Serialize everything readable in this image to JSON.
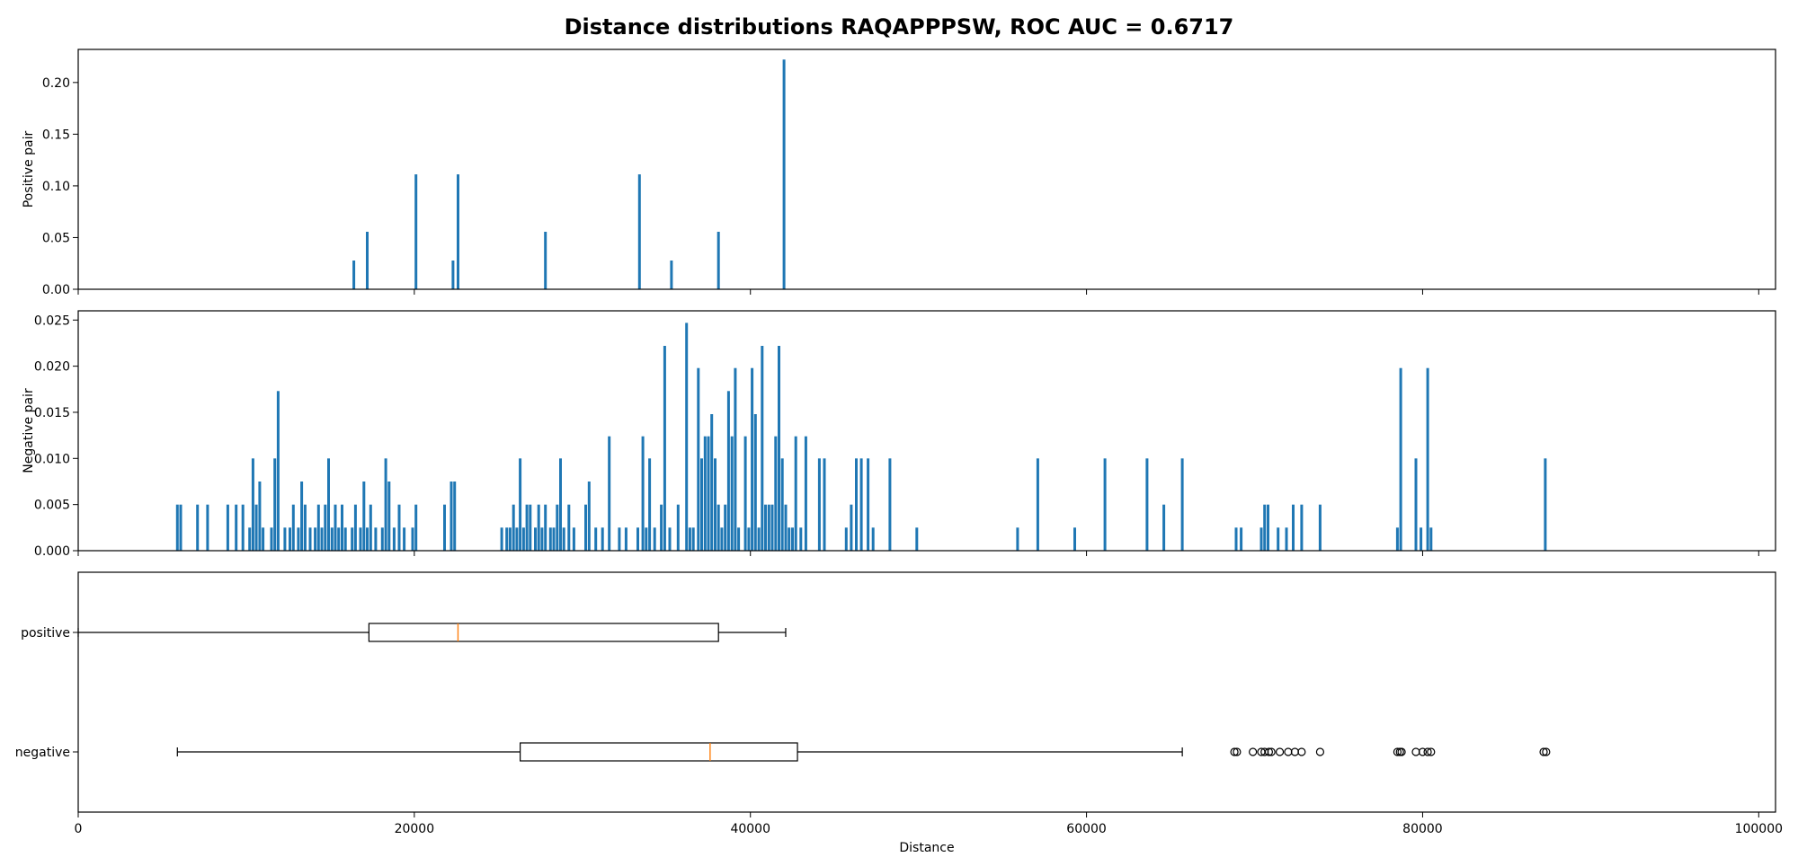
{
  "figure": {
    "title": "Distance distributions RAQAPPPSW, ROC AUC = 0.6717"
  },
  "colors": {
    "bars": "#1f77b4",
    "median": "#ff7f0e",
    "box": "#000000"
  },
  "chart_data": [
    {
      "type": "bar",
      "panel": "positive",
      "ylabel": "Positive pair",
      "xlim": [
        0,
        101000
      ],
      "ylim": [
        0,
        0.232
      ],
      "yticks": [
        0.0,
        0.05,
        0.1,
        0.15,
        0.2
      ],
      "ytick_labels": [
        "0.00",
        "0.05",
        "0.10",
        "0.15",
        "0.20"
      ],
      "x": [
        16400,
        17200,
        20100,
        22300,
        22600,
        27800,
        33400,
        35300,
        38100,
        42000
      ],
      "values": [
        0.0278,
        0.0556,
        0.1111,
        0.0278,
        0.1111,
        0.0556,
        0.1111,
        0.0278,
        0.0556,
        0.2222
      ]
    },
    {
      "type": "bar",
      "panel": "negative",
      "ylabel": "Negative pair",
      "xlim": [
        0,
        101000
      ],
      "ylim": [
        0,
        0.026
      ],
      "yticks": [
        0.0,
        0.005,
        0.01,
        0.015,
        0.02,
        0.025
      ],
      "ytick_labels": [
        "0.000",
        "0.005",
        "0.010",
        "0.015",
        "0.020",
        "0.025"
      ],
      "x": [
        5900,
        6100,
        7100,
        7700,
        8900,
        9400,
        9800,
        10200,
        10400,
        10600,
        10800,
        11000,
        11500,
        11700,
        11900,
        12300,
        12600,
        12800,
        13100,
        13300,
        13500,
        13800,
        14100,
        14300,
        14500,
        14700,
        14900,
        15100,
        15300,
        15500,
        15700,
        15900,
        16300,
        16500,
        16800,
        17000,
        17200,
        17400,
        17700,
        18100,
        18300,
        18500,
        18800,
        19100,
        19400,
        19900,
        20100,
        21800,
        22200,
        22400,
        25200,
        25500,
        25700,
        25900,
        26100,
        26300,
        26500,
        26700,
        26900,
        27200,
        27400,
        27600,
        27800,
        28100,
        28300,
        28500,
        28700,
        28900,
        29200,
        29500,
        30200,
        30400,
        30800,
        31200,
        31600,
        32200,
        32600,
        33300,
        33600,
        33800,
        34000,
        34300,
        34700,
        34900,
        35200,
        35700,
        36200,
        36400,
        36600,
        36900,
        37100,
        37300,
        37500,
        37700,
        37900,
        38100,
        38300,
        38500,
        38700,
        38900,
        39100,
        39300,
        39700,
        39900,
        40100,
        40300,
        40500,
        40700,
        40900,
        41100,
        41300,
        41500,
        41700,
        41900,
        42100,
        42300,
        42500,
        42700,
        43000,
        43300,
        44100,
        44400,
        45700,
        46000,
        46300,
        46600,
        47000,
        47300,
        48300,
        49900,
        55900,
        57100,
        59300,
        61100,
        63600,
        64600,
        65700,
        68900,
        69200,
        70400,
        70600,
        70800,
        71400,
        71900,
        72300,
        72800,
        73900,
        78500,
        78700,
        79600,
        79900,
        80300,
        80500,
        87300
      ],
      "values": [
        0.005,
        0.005,
        0.005,
        0.005,
        0.005,
        0.005,
        0.005,
        0.0025,
        0.01,
        0.005,
        0.0075,
        0.0025,
        0.0025,
        0.01,
        0.0173,
        0.0025,
        0.0025,
        0.005,
        0.0025,
        0.0075,
        0.005,
        0.0025,
        0.0025,
        0.005,
        0.0025,
        0.005,
        0.01,
        0.0025,
        0.005,
        0.0025,
        0.005,
        0.0025,
        0.0025,
        0.005,
        0.0025,
        0.0075,
        0.0025,
        0.005,
        0.0025,
        0.0025,
        0.01,
        0.0075,
        0.0025,
        0.005,
        0.0025,
        0.0025,
        0.005,
        0.005,
        0.0075,
        0.0075,
        0.0025,
        0.0025,
        0.0025,
        0.005,
        0.0025,
        0.01,
        0.0025,
        0.005,
        0.005,
        0.0025,
        0.005,
        0.0025,
        0.005,
        0.0025,
        0.0025,
        0.005,
        0.01,
        0.0025,
        0.005,
        0.0025,
        0.005,
        0.0075,
        0.0025,
        0.0025,
        0.0124,
        0.0025,
        0.0025,
        0.0025,
        0.0124,
        0.0025,
        0.01,
        0.0025,
        0.005,
        0.0222,
        0.0025,
        0.005,
        0.0247,
        0.0025,
        0.0025,
        0.0198,
        0.01,
        0.0124,
        0.0124,
        0.0148,
        0.01,
        0.005,
        0.0025,
        0.005,
        0.0173,
        0.0124,
        0.0198,
        0.0025,
        0.0124,
        0.0025,
        0.0198,
        0.0148,
        0.0025,
        0.0222,
        0.005,
        0.005,
        0.005,
        0.0124,
        0.0222,
        0.01,
        0.005,
        0.0025,
        0.0025,
        0.0124,
        0.0025,
        0.0124,
        0.01,
        0.01,
        0.0025,
        0.005,
        0.01,
        0.01,
        0.01,
        0.0025,
        0.01,
        0.0025,
        0.0025,
        0.01,
        0.0025,
        0.01,
        0.01,
        0.005,
        0.01,
        0.0025,
        0.0025,
        0.0025,
        0.005,
        0.005,
        0.0025,
        0.0025,
        0.005,
        0.005,
        0.005,
        0.0025,
        0.0198,
        0.01,
        0.0025,
        0.0198,
        0.0025,
        0.01
      ]
    },
    {
      "type": "boxplot",
      "panel": "boxplot",
      "xlabel": "Distance",
      "xlim": [
        0,
        101000
      ],
      "xticks": [
        0,
        20000,
        40000,
        60000,
        80000,
        100000
      ],
      "xtick_labels": [
        "0",
        "20000",
        "40000",
        "60000",
        "80000",
        "100000"
      ],
      "categories": [
        "positive",
        "negative"
      ],
      "boxes": [
        {
          "name": "positive",
          "whisker_low": 0,
          "q1": 17300,
          "median": 22600,
          "q3": 38100,
          "whisker_high": 42100,
          "outliers": []
        },
        {
          "name": "negative",
          "whisker_low": 5900,
          "q1": 26300,
          "median": 37600,
          "q3": 42800,
          "whisker_high": 65700,
          "outliers": [
            68800,
            68950,
            69900,
            70400,
            70600,
            70850,
            71000,
            71500,
            72000,
            72400,
            72800,
            73900,
            78500,
            78650,
            78750,
            79600,
            80000,
            80300,
            80500,
            87200,
            87350
          ]
        }
      ]
    }
  ]
}
